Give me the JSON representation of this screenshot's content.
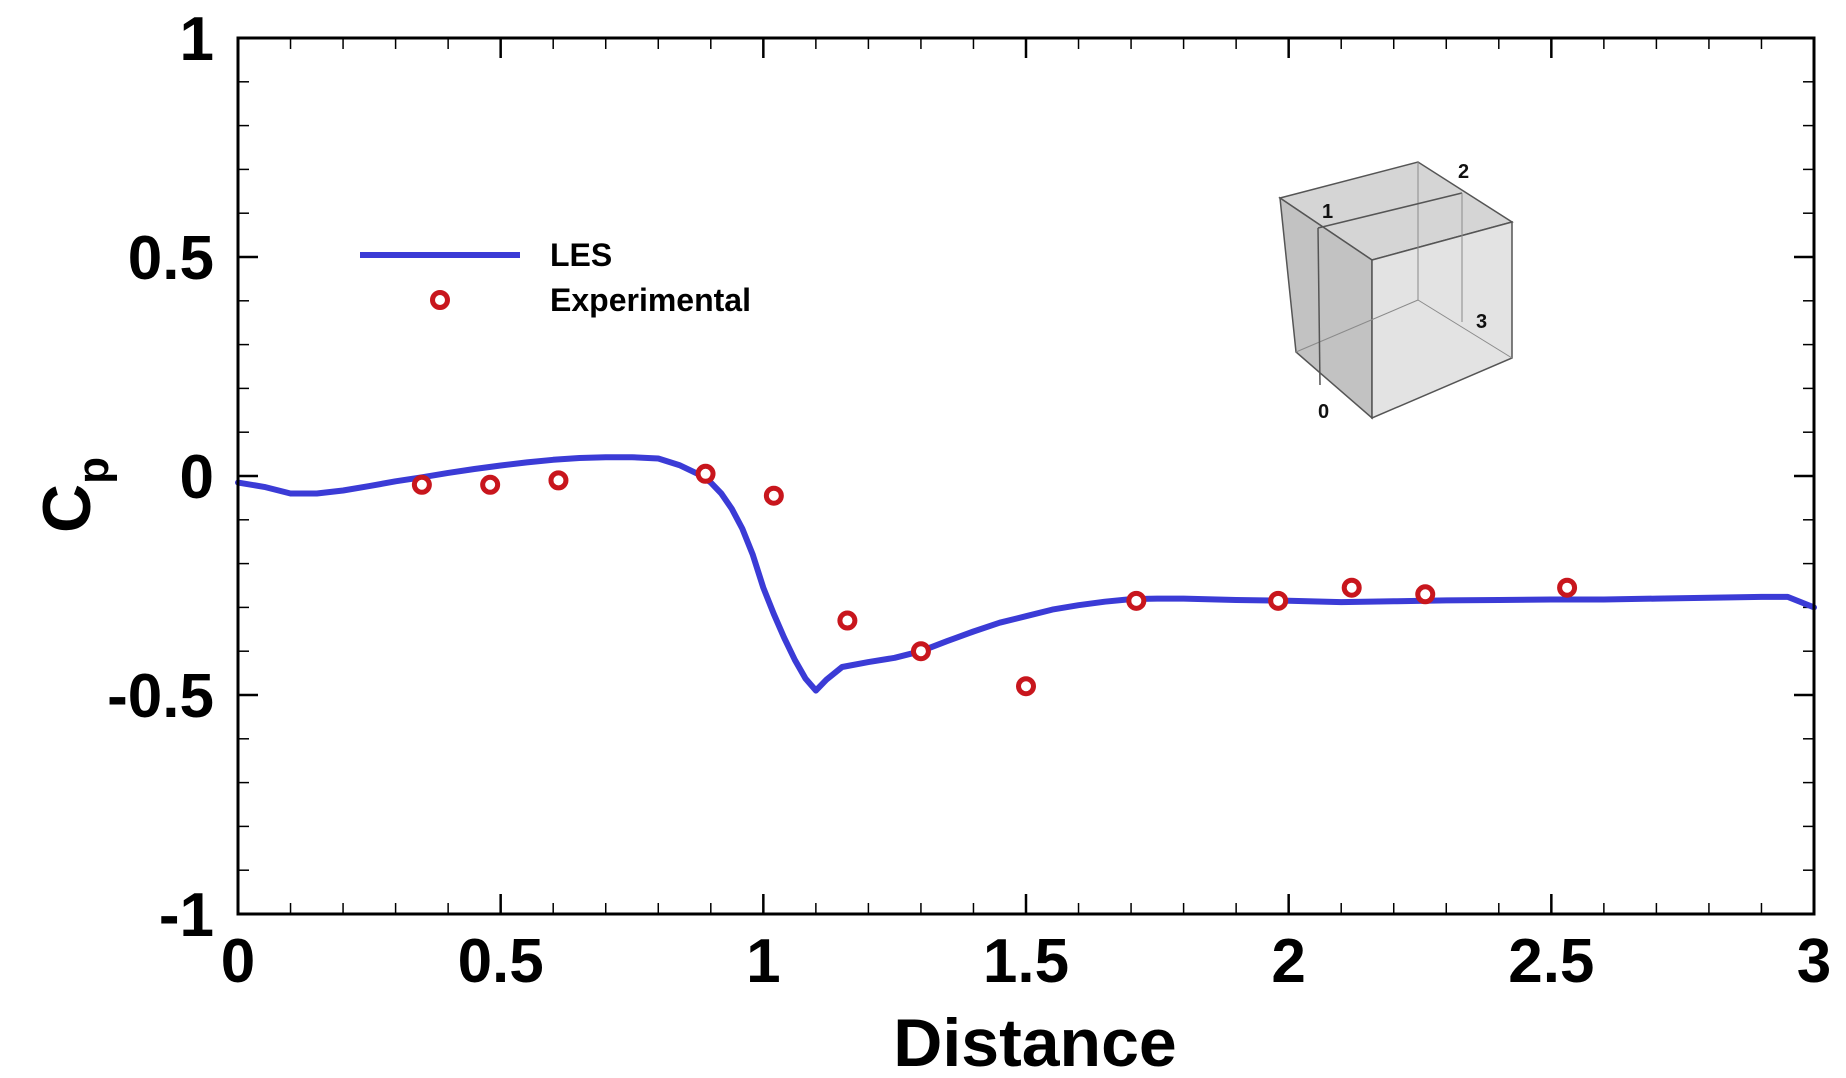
{
  "chart_data": {
    "type": "line",
    "title": "",
    "xlabel": "Distance",
    "ylabel": "C",
    "ylabel_subscript": "p",
    "xlim": [
      0,
      3
    ],
    "ylim": [
      -1,
      1
    ],
    "x_ticks": [
      0,
      0.5,
      1,
      1.5,
      2,
      2.5,
      3
    ],
    "x_tick_labels": [
      "0",
      "0.5",
      "1",
      "1.5",
      "2",
      "2.5",
      "3"
    ],
    "y_ticks": [
      -1,
      -0.5,
      0,
      0.5,
      1
    ],
    "y_tick_labels": [
      "-1",
      "-0.5",
      "0",
      "0.5",
      "1"
    ],
    "grid": false,
    "legend_position": "upper-left",
    "series": [
      {
        "name": "LES",
        "kind": "line",
        "color": "#3b3bd6",
        "x": [
          0,
          0.05,
          0.1,
          0.15,
          0.2,
          0.25,
          0.3,
          0.35,
          0.4,
          0.45,
          0.5,
          0.55,
          0.6,
          0.65,
          0.7,
          0.75,
          0.8,
          0.84,
          0.88,
          0.9,
          0.92,
          0.94,
          0.96,
          0.98,
          1.0,
          1.02,
          1.04,
          1.06,
          1.08,
          1.1,
          1.12,
          1.15,
          1.2,
          1.25,
          1.3,
          1.35,
          1.4,
          1.45,
          1.5,
          1.55,
          1.6,
          1.65,
          1.7,
          1.75,
          1.8,
          1.9,
          2.0,
          2.1,
          2.2,
          2.3,
          2.4,
          2.5,
          2.6,
          2.7,
          2.8,
          2.9,
          2.95,
          3.0
        ],
        "y": [
          -0.015,
          -0.025,
          -0.04,
          -0.04,
          -0.033,
          -0.023,
          -0.012,
          -0.003,
          0.007,
          0.016,
          0.024,
          0.031,
          0.037,
          0.041,
          0.043,
          0.043,
          0.04,
          0.025,
          0.002,
          -0.015,
          -0.04,
          -0.075,
          -0.12,
          -0.18,
          -0.255,
          -0.315,
          -0.37,
          -0.42,
          -0.462,
          -0.49,
          -0.465,
          -0.436,
          -0.425,
          -0.415,
          -0.4,
          -0.377,
          -0.355,
          -0.335,
          -0.32,
          -0.305,
          -0.295,
          -0.287,
          -0.281,
          -0.28,
          -0.28,
          -0.283,
          -0.285,
          -0.288,
          -0.286,
          -0.284,
          -0.283,
          -0.282,
          -0.282,
          -0.28,
          -0.278,
          -0.276,
          -0.276,
          -0.3
        ]
      },
      {
        "name": "Experimental",
        "kind": "scatter",
        "color": "#c8161d",
        "x": [
          0.35,
          0.48,
          0.61,
          0.89,
          1.02,
          1.16,
          1.3,
          1.5,
          1.71,
          1.98,
          2.12,
          2.26,
          2.53
        ],
        "y": [
          -0.02,
          -0.02,
          -0.01,
          0.005,
          -0.045,
          -0.33,
          -0.4,
          -0.48,
          -0.285,
          -0.285,
          -0.255,
          -0.27,
          -0.255
        ]
      }
    ],
    "inset_labels": [
      "1",
      "2",
      "3",
      "0"
    ]
  }
}
